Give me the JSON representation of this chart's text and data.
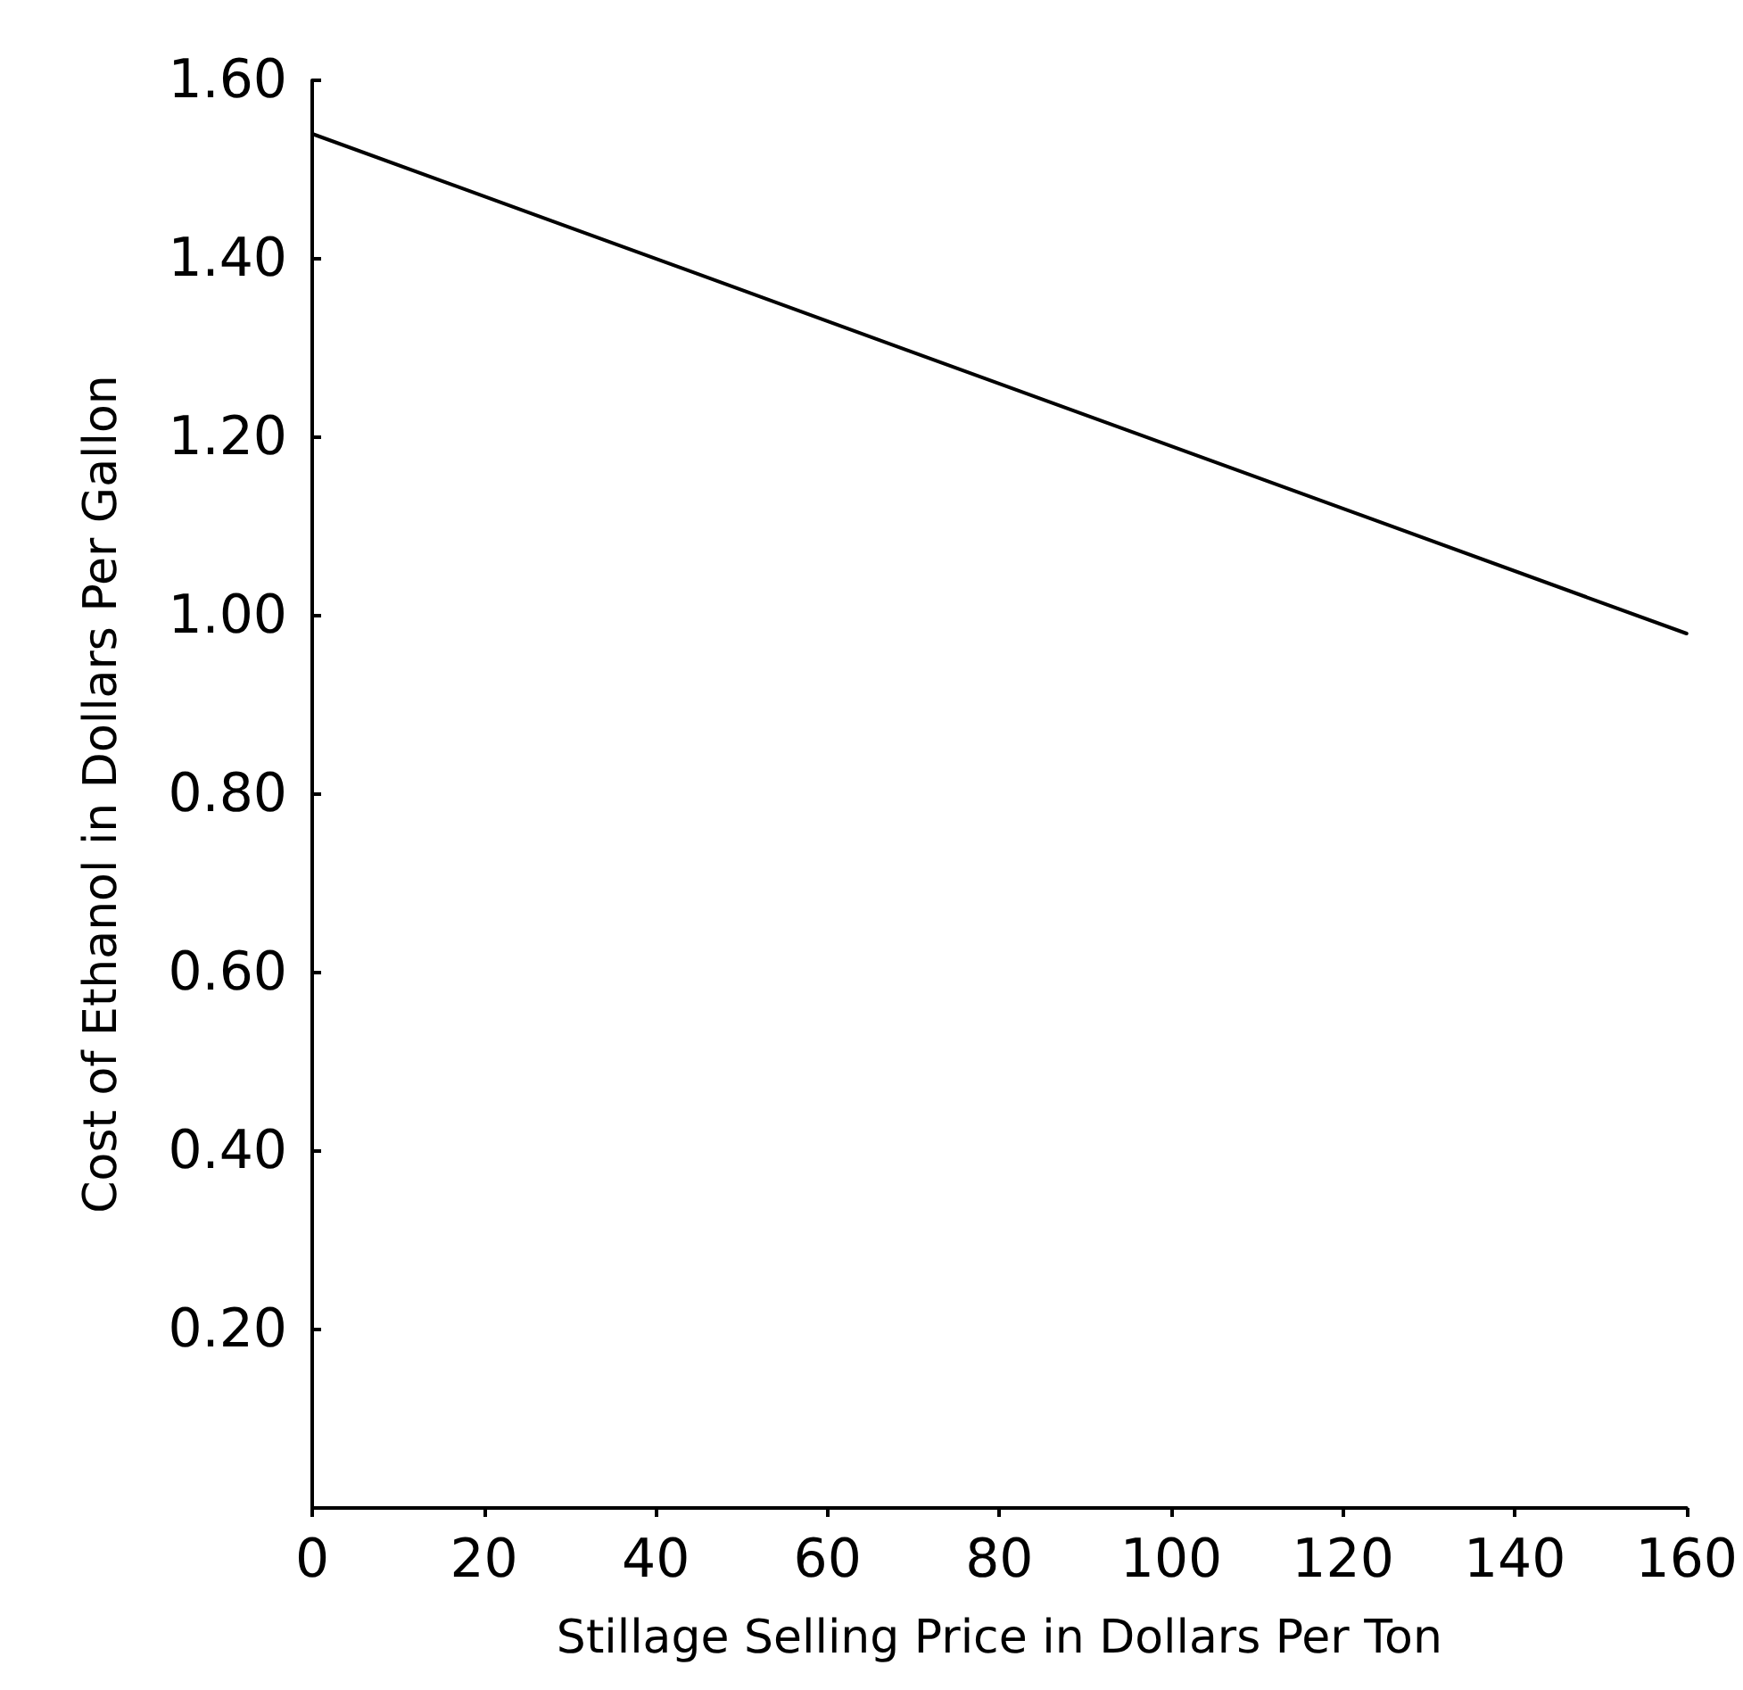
{
  "chart_data": {
    "type": "line",
    "xlabel": "Stillage Selling Price in Dollars Per Ton",
    "ylabel": "Cost of Ethanol in Dollars Per Gallon",
    "x": [
      0,
      160
    ],
    "series": [
      {
        "color": "#000000",
        "values": [
          1.54,
          0.98
        ]
      }
    ],
    "xlim": [
      0,
      160
    ],
    "xticks": [
      0,
      20,
      40,
      60,
      80,
      100,
      120,
      140,
      160
    ],
    "ylim": [
      0,
      1.6
    ],
    "yticks": [
      {
        "value": 0.2,
        "label": "0.20"
      },
      {
        "value": 0.4,
        "label": "0.40"
      },
      {
        "value": 0.6,
        "label": "0.60"
      },
      {
        "value": 0.8,
        "label": "0.80"
      },
      {
        "value": 1.0,
        "label": "1.00"
      },
      {
        "value": 1.2,
        "label": "1.20"
      },
      {
        "value": 1.4,
        "label": "1.40"
      },
      {
        "value": 1.6,
        "label": "1.60"
      }
    ],
    "grid": false,
    "marker": "none",
    "line_style": "solid"
  }
}
